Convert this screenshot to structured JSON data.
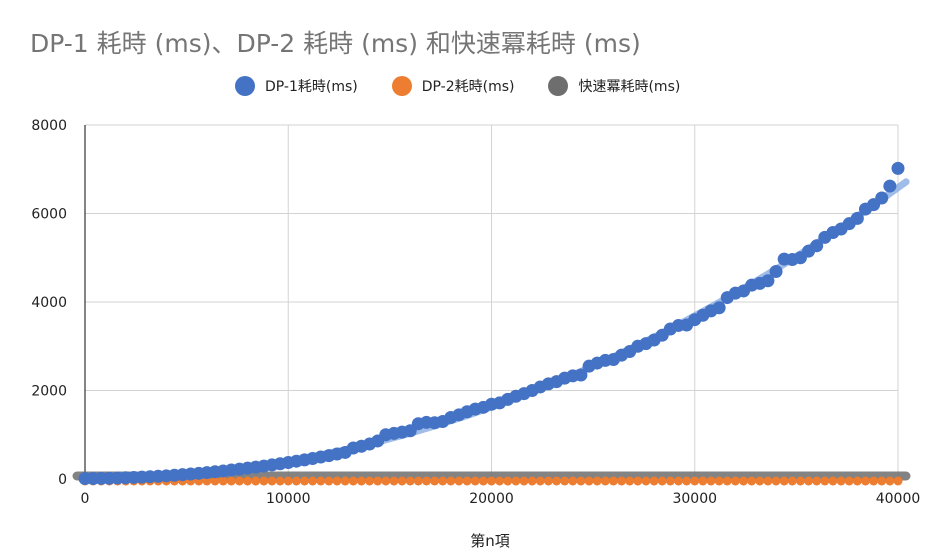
{
  "chart_data": {
    "type": "scatter",
    "title": "DP-1 耗時 (ms)、DP-2 耗時 (ms) 和快速冪耗時 (ms)",
    "xlabel": "第n項",
    "ylabel": "",
    "xlim": [
      0,
      40000
    ],
    "ylim": [
      0,
      8000
    ],
    "xticks": [
      0,
      10000,
      20000,
      30000,
      40000
    ],
    "yticks": [
      0,
      2000,
      4000,
      6000,
      8000
    ],
    "grid": true,
    "legend_position": "top",
    "trendline": {
      "series": "DP-1耗時(ms)",
      "type": "polynomial",
      "color": "#7fa7e0"
    },
    "series": [
      {
        "name": "DP-1耗時(ms)",
        "color": "#4472c4",
        "x": [
          0,
          400,
          800,
          1200,
          1600,
          2000,
          2400,
          2800,
          3200,
          3600,
          4000,
          4400,
          4800,
          5200,
          5600,
          6000,
          6400,
          6800,
          7200,
          7600,
          8000,
          8400,
          8800,
          9200,
          9600,
          10000,
          10400,
          10800,
          11200,
          11600,
          12000,
          12400,
          12800,
          13200,
          13600,
          14000,
          14400,
          14800,
          15200,
          15600,
          16000,
          16400,
          16800,
          17200,
          17600,
          18000,
          18400,
          18800,
          19200,
          19600,
          20000,
          20400,
          20800,
          21200,
          21600,
          22000,
          22400,
          22800,
          23200,
          23600,
          24000,
          24400,
          24800,
          25200,
          25600,
          26000,
          26400,
          26800,
          27200,
          27600,
          28000,
          28400,
          28800,
          29200,
          29600,
          30000,
          30400,
          30800,
          31200,
          31600,
          32000,
          32400,
          32800,
          33200,
          33600,
          34000,
          34400,
          34800,
          35200,
          35600,
          36000,
          36400,
          36800,
          37200,
          37600,
          38000,
          38400,
          38800,
          39200,
          39600,
          40000
        ],
        "y": [
          10,
          12,
          14,
          17,
          22,
          28,
          35,
          43,
          52,
          62,
          72,
          85,
          98,
          112,
          128,
          145,
          163,
          182,
          202,
          223,
          245,
          268,
          292,
          318,
          345,
          372,
          402,
          432,
          463,
          496,
          529,
          564,
          600,
          700,
          740,
          790,
          860,
          1000,
          1030,
          1060,
          1090,
          1250,
          1280,
          1270,
          1300,
          1390,
          1450,
          1520,
          1580,
          1620,
          1690,
          1720,
          1800,
          1870,
          1930,
          2000,
          2080,
          2150,
          2200,
          2280,
          2330,
          2350,
          2550,
          2620,
          2680,
          2700,
          2800,
          2880,
          3000,
          3060,
          3140,
          3250,
          3390,
          3470,
          3480,
          3600,
          3700,
          3800,
          3870,
          4100,
          4200,
          4250,
          4380,
          4420,
          4480,
          4690,
          4970,
          4960,
          5000,
          5150,
          5270,
          5460,
          5570,
          5650,
          5770,
          5890,
          6100,
          6200,
          6350,
          6620,
          7020
        ]
      },
      {
        "name": "DP-2耗時(ms)",
        "color": "#ed7d31",
        "x": [
          0,
          400,
          800,
          1200,
          1600,
          2000,
          2400,
          2800,
          3200,
          3600,
          4000,
          4400,
          4800,
          5200,
          5600,
          6000,
          6400,
          6800,
          7200,
          7600,
          8000,
          8400,
          8800,
          9200,
          9600,
          10000,
          10400,
          10800,
          11200,
          11600,
          12000,
          12400,
          12800,
          13200,
          13600,
          14000,
          14400,
          14800,
          15200,
          15600,
          16000,
          16400,
          16800,
          17200,
          17600,
          18000,
          18400,
          18800,
          19200,
          19600,
          20000,
          20400,
          20800,
          21200,
          21600,
          22000,
          22400,
          22800,
          23200,
          23600,
          24000,
          24400,
          24800,
          25200,
          25600,
          26000,
          26400,
          26800,
          27200,
          27600,
          28000,
          28400,
          28800,
          29200,
          29600,
          30000,
          30400,
          30800,
          31200,
          31600,
          32000,
          32400,
          32800,
          33200,
          33600,
          34000,
          34400,
          34800,
          35200,
          35600,
          36000,
          36400,
          36800,
          37200,
          37600,
          38000,
          38400,
          38800,
          39200,
          39600,
          40000
        ],
        "y": [
          0,
          0,
          0,
          0,
          0,
          0,
          0,
          0,
          0,
          0,
          0,
          0,
          0,
          0,
          0,
          0,
          0,
          0,
          0,
          0,
          0,
          0,
          0,
          0,
          0,
          0,
          0,
          0,
          0,
          0,
          0,
          0,
          0,
          0,
          0,
          0,
          0,
          0,
          0,
          0,
          0,
          0,
          0,
          0,
          0,
          0,
          0,
          0,
          0,
          0,
          0,
          0,
          0,
          0,
          0,
          0,
          0,
          0,
          0,
          0,
          0,
          0,
          0,
          0,
          0,
          0,
          0,
          0,
          0,
          0,
          0,
          0,
          0,
          0,
          0,
          0,
          0,
          0,
          0,
          0,
          0,
          0,
          0,
          0,
          0,
          0,
          0,
          0,
          0,
          0,
          0,
          0,
          0,
          0,
          0,
          0,
          0,
          0,
          0,
          0,
          0
        ]
      },
      {
        "name": "快速冪耗時(ms)",
        "color": "#6e6e6e",
        "x": [
          0,
          40000
        ],
        "y": [
          0,
          0
        ]
      }
    ]
  }
}
